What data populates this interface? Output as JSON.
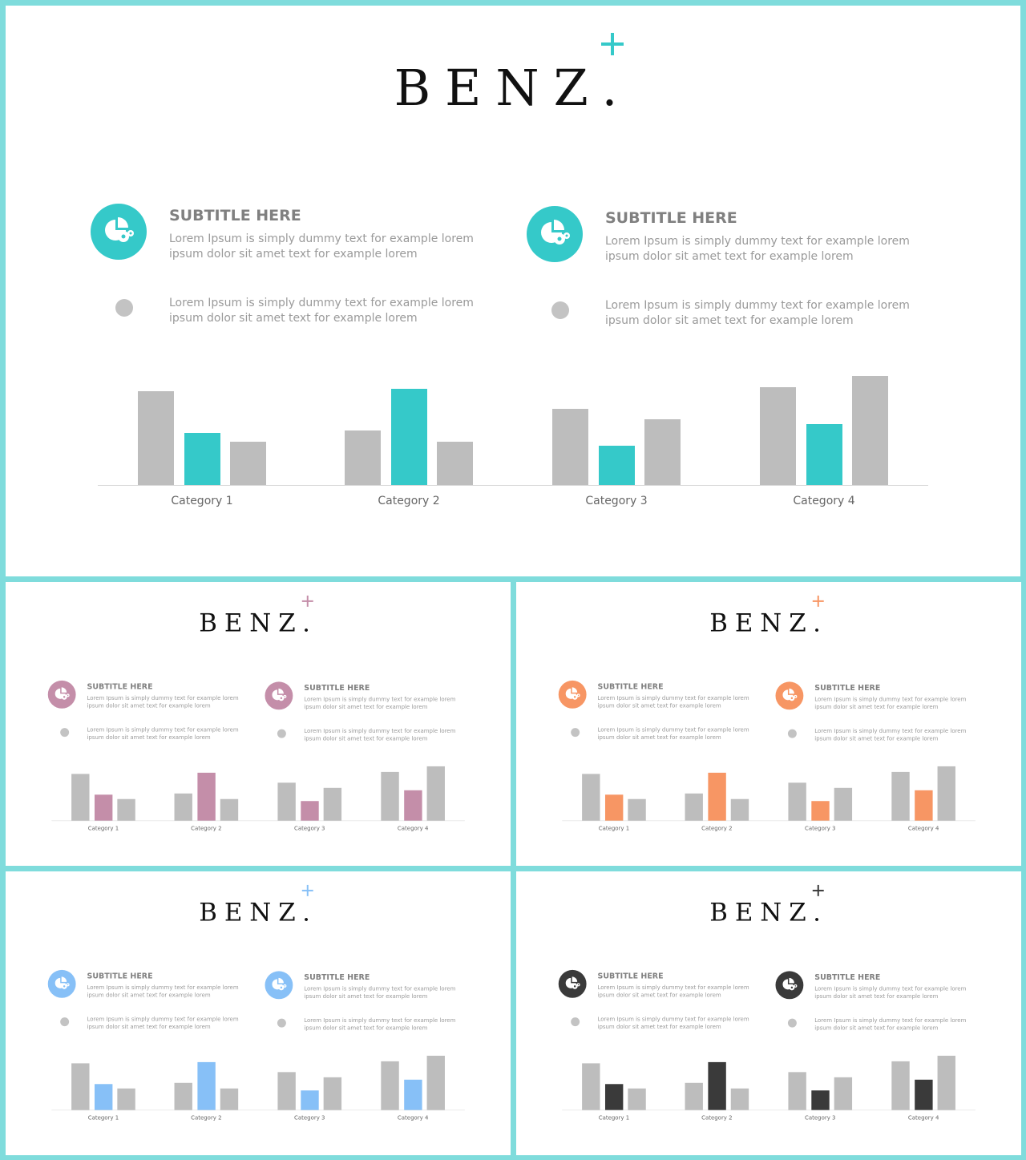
{
  "brand": "BENZ.",
  "columns": [
    {
      "subtitle": "SUBTITLE HERE",
      "body1": "Lorem Ipsum is simply dummy text for example lorem ipsum dolor sit amet text for example lorem",
      "body2": "Lorem Ipsum is simply dummy text for example lorem ipsum dolor sit amet text for example lorem"
    },
    {
      "subtitle": "SUBTITLE HERE",
      "body1": "Lorem Ipsum is simply dummy text for example lorem ipsum dolor sit amet text for example lorem",
      "body2": "Lorem Ipsum is simply dummy text for example lorem ipsum dolor sit amet text for example lorem"
    }
  ],
  "variants": [
    {
      "accent": "#35c9c9"
    },
    {
      "accent": "#c48ea9"
    },
    {
      "accent": "#f79664"
    },
    {
      "accent": "#87c0f7"
    },
    {
      "accent": "#3a3a3a"
    }
  ],
  "icons": {
    "column_icon": "pie-chart-gear-icon",
    "bullet": "gray-dot"
  },
  "chart_data": {
    "type": "bar",
    "categories": [
      "Category 1",
      "Category 2",
      "Category 3",
      "Category 4"
    ],
    "series": [
      {
        "color": "#bdbdbd",
        "values": [
          4.3,
          2.5,
          3.5,
          4.5
        ]
      },
      {
        "color": "accent",
        "values": [
          2.4,
          4.4,
          1.8,
          2.8
        ]
      },
      {
        "color": "#bdbdbd",
        "values": [
          2.0,
          2.0,
          3.0,
          5.0
        ]
      }
    ],
    "ylim": [
      0,
      5.5
    ],
    "grid": false,
    "legend": "none"
  }
}
